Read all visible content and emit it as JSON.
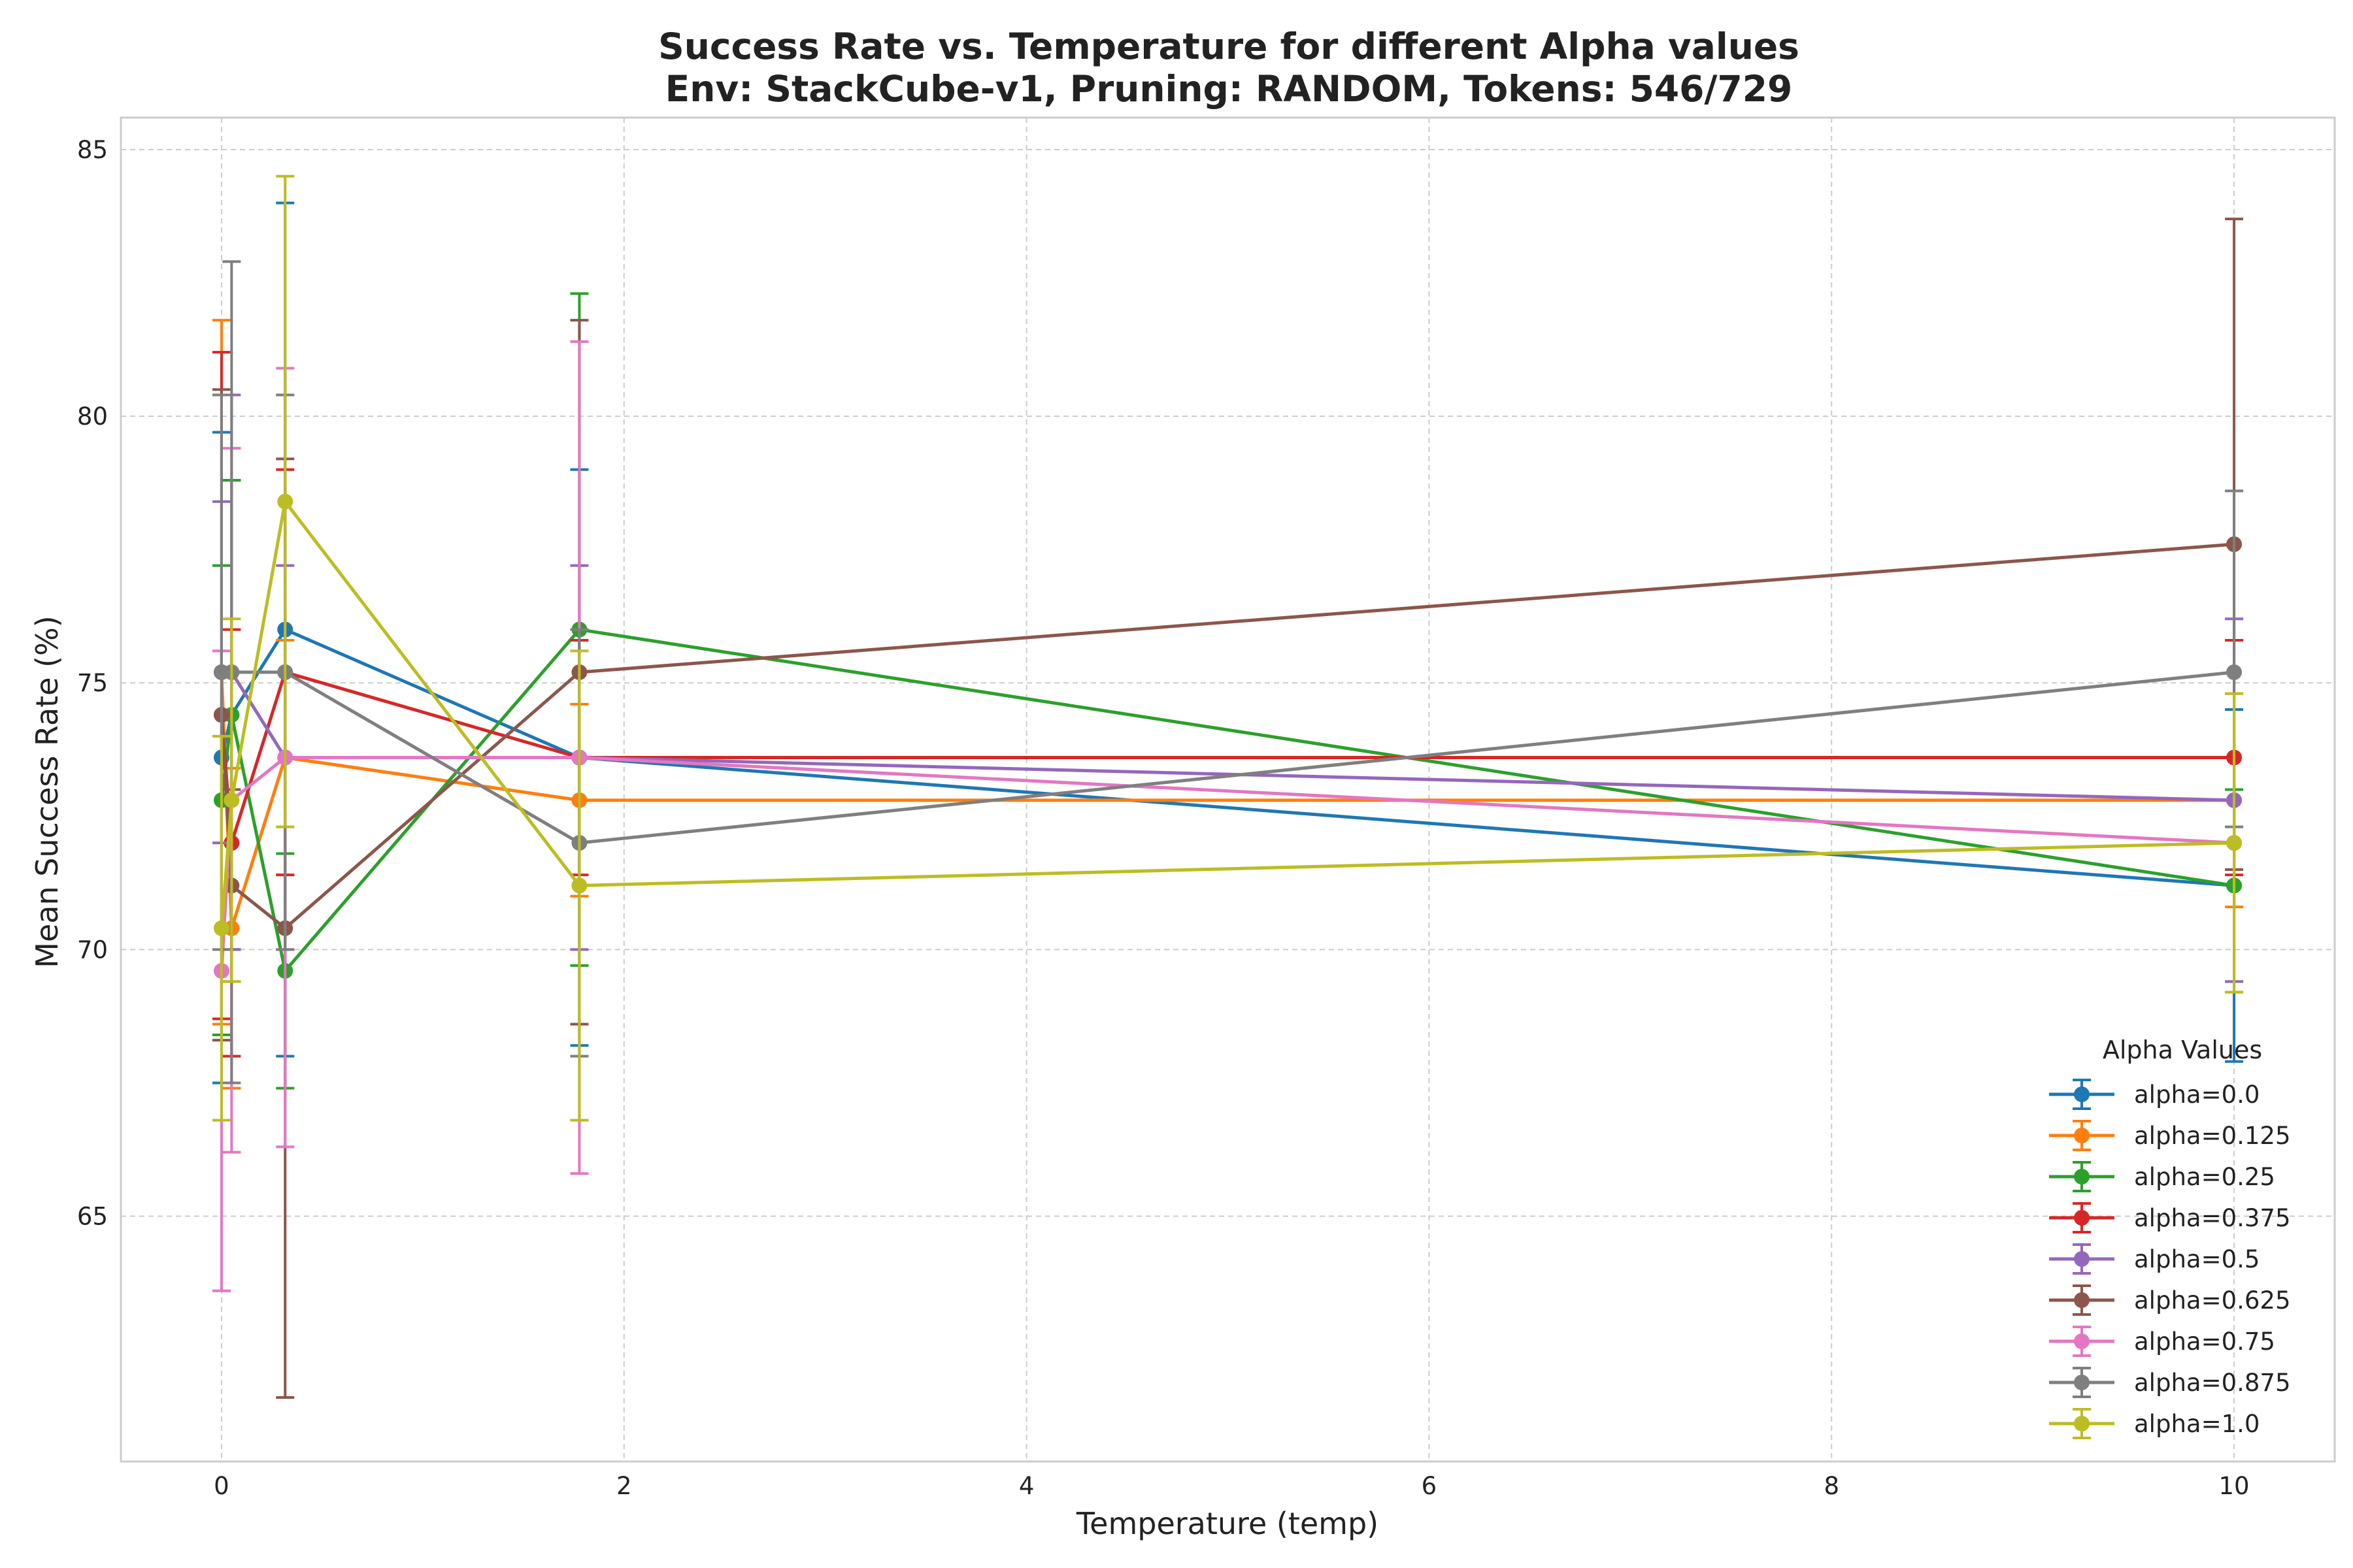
{
  "chart_data": {
    "type": "line",
    "title": "Success Rate vs. Temperature for different Alpha values",
    "subtitle": "Env: StackCube-v1, Pruning: RANDOM, Tokens: 546/729",
    "xlabel": "Temperature (temp)",
    "ylabel": "Mean Success Rate (%)",
    "xlim": [
      -0.5,
      10.5
    ],
    "ylim": [
      60.4,
      85.6
    ],
    "xticks": [
      0,
      2,
      4,
      6,
      8,
      10
    ],
    "yticks": [
      65,
      70,
      75,
      80,
      85
    ],
    "grid": true,
    "error_bars": true,
    "legend_title": "Alpha Values",
    "legend_position": "lower-right",
    "series": [
      {
        "name": "alpha=0.0",
        "color": "#1f77b4",
        "points": [
          {
            "x": 0.0,
            "y": 73.6,
            "lo": 67.5,
            "hi": 79.7
          },
          {
            "x": 0.05,
            "y": 74.4,
            "lo": 70.0,
            "hi": 78.8
          },
          {
            "x": 0.316,
            "y": 76.0,
            "lo": 68.0,
            "hi": 84.0
          },
          {
            "x": 1.778,
            "y": 73.6,
            "lo": 68.2,
            "hi": 79.0
          },
          {
            "x": 10.0,
            "y": 71.2,
            "lo": 67.9,
            "hi": 74.5
          }
        ]
      },
      {
        "name": "alpha=0.125",
        "color": "#ff7f0e",
        "points": [
          {
            "x": 0.0,
            "y": 75.2,
            "lo": 68.6,
            "hi": 81.8
          },
          {
            "x": 0.05,
            "y": 70.4,
            "lo": 67.4,
            "hi": 73.4
          },
          {
            "x": 0.316,
            "y": 73.6,
            "lo": 71.4,
            "hi": 75.8
          },
          {
            "x": 1.778,
            "y": 72.8,
            "lo": 71.0,
            "hi": 74.6
          },
          {
            "x": 10.0,
            "y": 72.8,
            "lo": 70.8,
            "hi": 74.8
          }
        ]
      },
      {
        "name": "alpha=0.25",
        "color": "#2ca02c",
        "points": [
          {
            "x": 0.0,
            "y": 72.8,
            "lo": 68.4,
            "hi": 77.2
          },
          {
            "x": 0.05,
            "y": 74.4,
            "lo": 70.0,
            "hi": 78.8
          },
          {
            "x": 0.316,
            "y": 69.6,
            "lo": 67.4,
            "hi": 71.8
          },
          {
            "x": 1.778,
            "y": 76.0,
            "lo": 69.7,
            "hi": 82.3
          },
          {
            "x": 10.0,
            "y": 71.2,
            "lo": 69.4,
            "hi": 73.0
          }
        ]
      },
      {
        "name": "alpha=0.375",
        "color": "#d62728",
        "points": [
          {
            "x": 0.0,
            "y": 74.4,
            "lo": 68.7,
            "hi": 81.2
          },
          {
            "x": 0.05,
            "y": 72.0,
            "lo": 68.0,
            "hi": 76.0
          },
          {
            "x": 0.316,
            "y": 75.2,
            "lo": 71.4,
            "hi": 79.0
          },
          {
            "x": 1.778,
            "y": 73.6,
            "lo": 71.4,
            "hi": 75.8
          },
          {
            "x": 10.0,
            "y": 73.6,
            "lo": 71.4,
            "hi": 75.8
          }
        ]
      },
      {
        "name": "alpha=0.5",
        "color": "#9467bd",
        "points": [
          {
            "x": 0.0,
            "y": 75.2,
            "lo": 72.0,
            "hi": 78.4
          },
          {
            "x": 0.05,
            "y": 75.2,
            "lo": 70.0,
            "hi": 80.4
          },
          {
            "x": 0.316,
            "y": 73.6,
            "lo": 70.0,
            "hi": 77.2
          },
          {
            "x": 1.778,
            "y": 73.6,
            "lo": 70.0,
            "hi": 77.2
          },
          {
            "x": 10.0,
            "y": 72.8,
            "lo": 69.4,
            "hi": 76.2
          }
        ]
      },
      {
        "name": "alpha=0.625",
        "color": "#8c564b",
        "points": [
          {
            "x": 0.0,
            "y": 74.4,
            "lo": 68.3,
            "hi": 80.5
          },
          {
            "x": 0.05,
            "y": 71.2,
            "lo": 69.4,
            "hi": 73.0
          },
          {
            "x": 0.316,
            "y": 70.4,
            "lo": 61.6,
            "hi": 79.2
          },
          {
            "x": 1.778,
            "y": 75.2,
            "lo": 68.6,
            "hi": 81.8
          },
          {
            "x": 10.0,
            "y": 77.6,
            "lo": 71.5,
            "hi": 83.7
          }
        ]
      },
      {
        "name": "alpha=0.75",
        "color": "#e377c2",
        "points": [
          {
            "x": 0.0,
            "y": 69.6,
            "lo": 63.6,
            "hi": 75.6
          },
          {
            "x": 0.05,
            "y": 72.8,
            "lo": 66.2,
            "hi": 79.4
          },
          {
            "x": 0.316,
            "y": 73.6,
            "lo": 66.3,
            "hi": 80.9
          },
          {
            "x": 1.778,
            "y": 73.6,
            "lo": 65.8,
            "hi": 81.4
          },
          {
            "x": 10.0,
            "y": 72.0,
            "lo": 69.2,
            "hi": 74.8
          }
        ]
      },
      {
        "name": "alpha=0.875",
        "color": "#7f7f7f",
        "points": [
          {
            "x": 0.0,
            "y": 75.2,
            "lo": 70.0,
            "hi": 80.4
          },
          {
            "x": 0.05,
            "y": 75.2,
            "lo": 67.5,
            "hi": 82.9
          },
          {
            "x": 0.316,
            "y": 75.2,
            "lo": 70.0,
            "hi": 80.4
          },
          {
            "x": 1.778,
            "y": 72.0,
            "lo": 68.0,
            "hi": 76.0
          },
          {
            "x": 10.0,
            "y": 75.2,
            "lo": 72.3,
            "hi": 78.6
          }
        ]
      },
      {
        "name": "alpha=1.0",
        "color": "#bcbd22",
        "points": [
          {
            "x": 0.0,
            "y": 70.4,
            "lo": 66.8,
            "hi": 74.0
          },
          {
            "x": 0.05,
            "y": 72.8,
            "lo": 69.4,
            "hi": 76.2
          },
          {
            "x": 0.316,
            "y": 78.4,
            "lo": 72.3,
            "hi": 84.5
          },
          {
            "x": 1.778,
            "y": 71.2,
            "lo": 66.8,
            "hi": 75.6
          },
          {
            "x": 10.0,
            "y": 72.0,
            "lo": 69.2,
            "hi": 74.8
          }
        ]
      }
    ]
  }
}
